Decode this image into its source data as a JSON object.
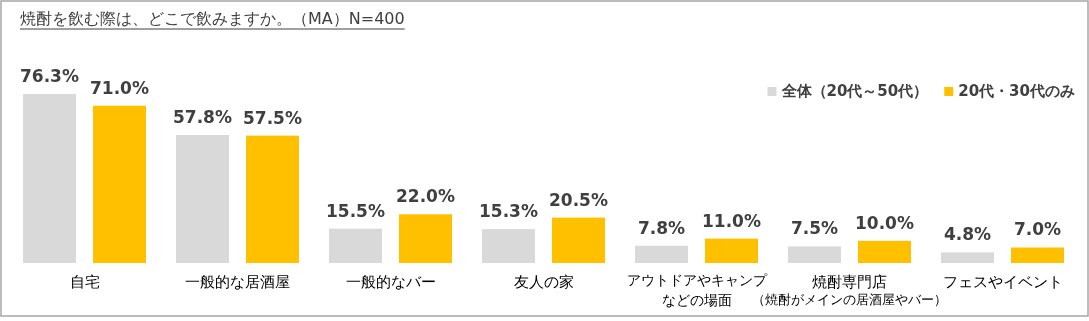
{
  "chart_data": {
    "type": "bar",
    "title": "焼酎を飲む際は、どこで飲みますか。（MA）N=400",
    "categories": [
      "自宅",
      "一般的な居酒屋",
      "一般的なバー",
      "友人の家",
      "アウトドアやキャンプなどの場面",
      "焼酎専門店",
      "フェスやイベント"
    ],
    "series": [
      {
        "name": "全体（20代～50代）",
        "color": "#d9d9d9",
        "values": [
          76.3,
          57.8,
          15.5,
          15.3,
          7.8,
          7.5,
          4.8
        ],
        "value_labels": [
          "76.3%",
          "57.8%",
          "15.5%",
          "15.3%",
          "7.8%",
          "7.5%",
          "4.8%"
        ]
      },
      {
        "name": "20代・30代のみ",
        "color": "#ffc000",
        "values": [
          71.0,
          57.5,
          22.0,
          20.5,
          11.0,
          10.0,
          7.0
        ],
        "value_labels": [
          "71.0%",
          "57.5%",
          "22.0%",
          "20.5%",
          "11.0%",
          "10.0%",
          "7.0%"
        ]
      }
    ],
    "annotations": [
      "（焼酎がメインの居酒屋やバー）"
    ],
    "legend": "top right"
  }
}
